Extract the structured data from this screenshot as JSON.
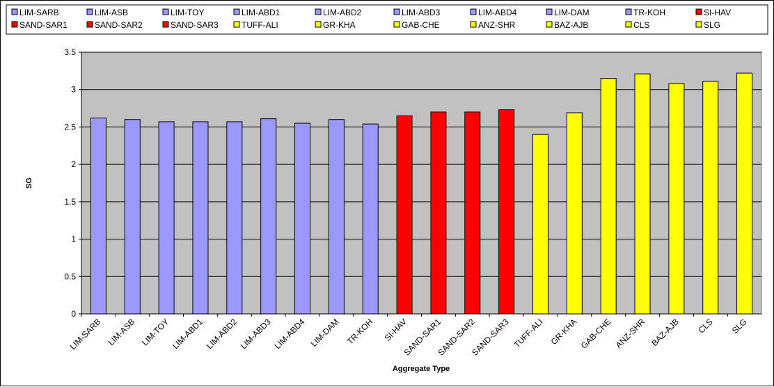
{
  "chart_data": {
    "type": "bar",
    "title": "",
    "xlabel": "Aggregate Type",
    "ylabel": "SG",
    "ylim": [
      0,
      3.5
    ],
    "yticks": [
      "0",
      "0.5",
      "1",
      "1.5",
      "2",
      "2.5",
      "3",
      "3.5"
    ],
    "grid": true,
    "legend_position": "top",
    "categories": [
      "LIM-SARB",
      "LIM-ASB",
      "LIM-TOY",
      "LIM-ABD1",
      "LIM-ABD2",
      "LIM-ABD3",
      "LIM-ABD4",
      "LIM-DAM",
      "TR-KOH",
      "SI-HAV",
      "SAND-SAR1",
      "SAND-SAR2",
      "SAND-SAR3",
      "TUFF-ALI",
      "GR-KHA",
      "GAB-CHE",
      "ANZ-SHR",
      "BAZ-AJB",
      "CLS",
      "SLG"
    ],
    "values": [
      2.62,
      2.6,
      2.57,
      2.57,
      2.57,
      2.61,
      2.55,
      2.6,
      2.54,
      2.65,
      2.7,
      2.7,
      2.73,
      2.4,
      2.69,
      3.15,
      3.21,
      3.08,
      3.11,
      3.22
    ],
    "bar_colors": [
      "#9999ff",
      "#9999ff",
      "#9999ff",
      "#9999ff",
      "#9999ff",
      "#9999ff",
      "#9999ff",
      "#9999ff",
      "#9999ff",
      "#ff0000",
      "#ff0000",
      "#ff0000",
      "#ff0000",
      "#ffff00",
      "#ffff00",
      "#ffff00",
      "#ffff00",
      "#ffff00",
      "#ffff00",
      "#ffff00"
    ],
    "plot_background": "#c0c0c0"
  }
}
